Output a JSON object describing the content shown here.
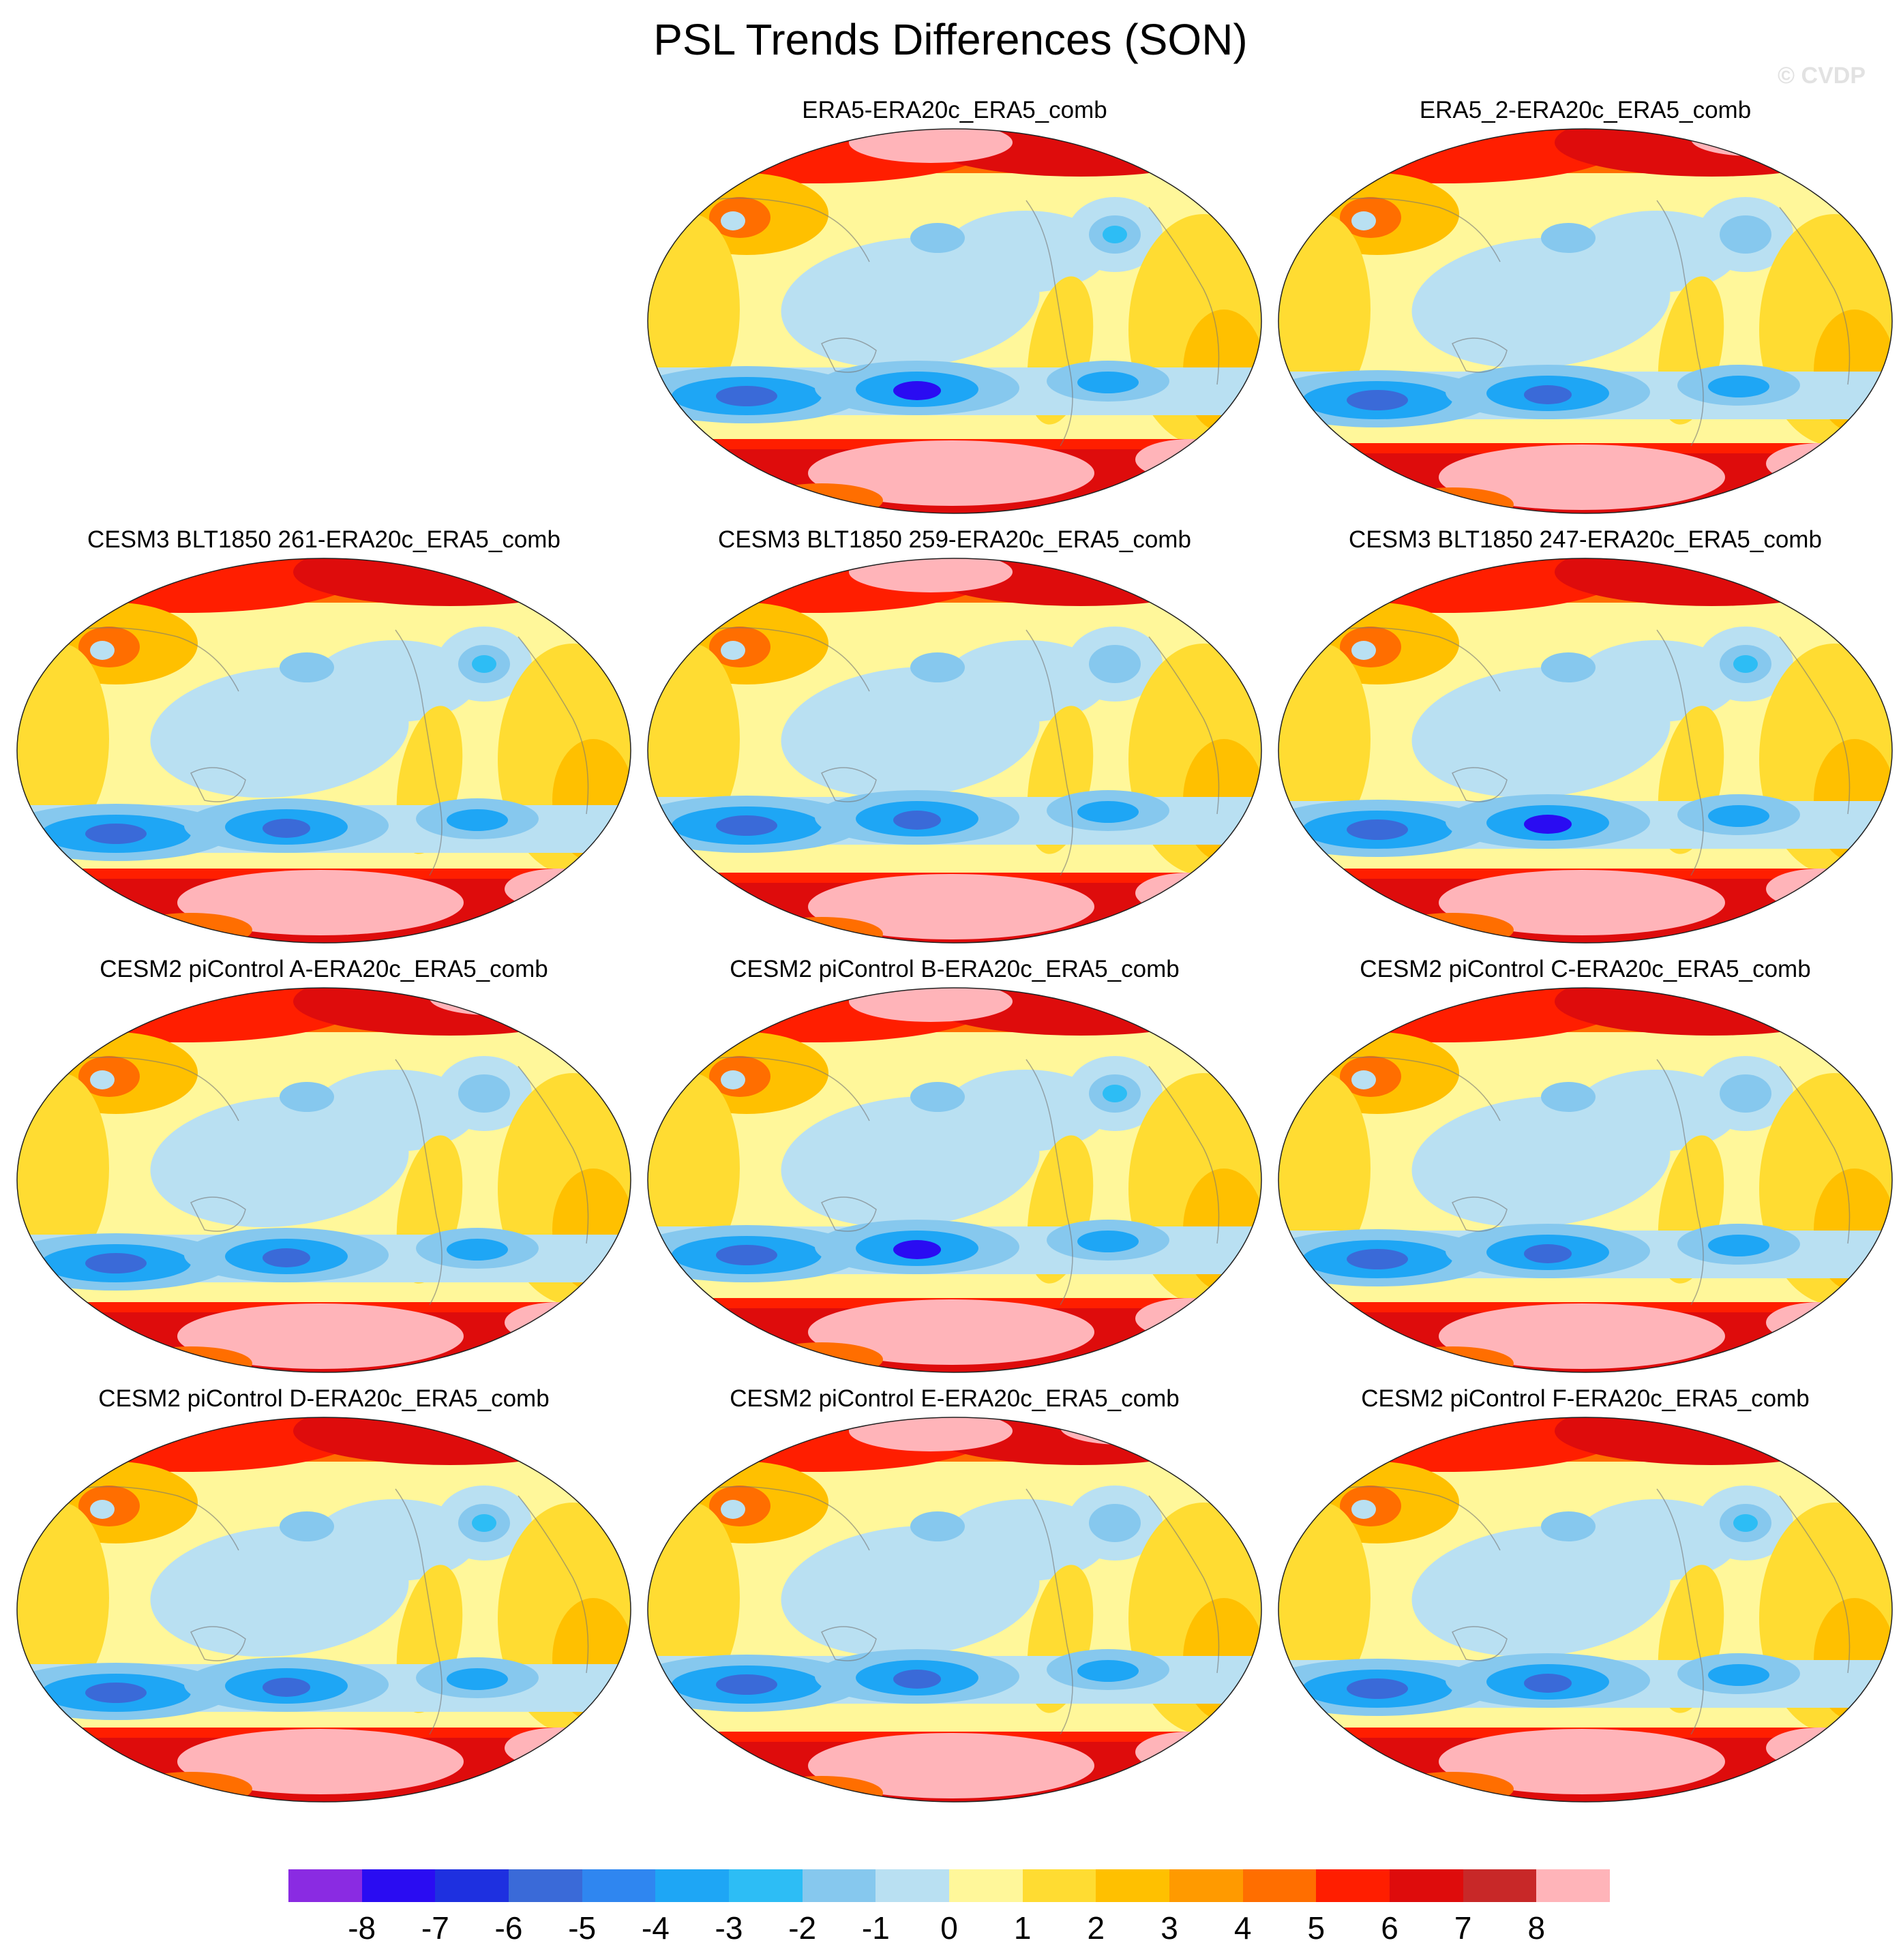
{
  "title": "PSL Trends Differences (SON)",
  "watermark": "© CVDP",
  "panels": [
    {
      "label": "ERA5-ERA20c_ERA5_comb",
      "variant": 0
    },
    {
      "label": "ERA5_2-ERA20c_ERA5_comb",
      "variant": 1
    },
    {
      "label": "CESM3 BLT1850 261-ERA20c_ERA5_comb",
      "variant": 2
    },
    {
      "label": "CESM3 BLT1850 259-ERA20c_ERA5_comb",
      "variant": 3
    },
    {
      "label": "CESM3 BLT1850 247-ERA20c_ERA5_comb",
      "variant": 4
    },
    {
      "label": "CESM2 piControl A-ERA20c_ERA5_comb",
      "variant": 5
    },
    {
      "label": "CESM2 piControl B-ERA20c_ERA5_comb",
      "variant": 6
    },
    {
      "label": "CESM2 piControl C-ERA20c_ERA5_comb",
      "variant": 7
    },
    {
      "label": "CESM2 piControl D-ERA20c_ERA5_comb",
      "variant": 8
    },
    {
      "label": "CESM2 piControl E-ERA20c_ERA5_comb",
      "variant": 9
    },
    {
      "label": "CESM2 piControl F-ERA20c_ERA5_comb",
      "variant": 10
    }
  ],
  "colorbar": {
    "colors": [
      "#8a2be2",
      "#2a0cf2",
      "#1e30e0",
      "#3a6ad8",
      "#2f86f0",
      "#1ea6f5",
      "#2dbdf5",
      "#86c8ee",
      "#b9e0f2",
      "#fff79a",
      "#ffdc32",
      "#ffc000",
      "#ff9a00",
      "#ff6e00",
      "#ff1e00",
      "#de0c0c",
      "#c82828",
      "#ffb4b9"
    ],
    "labels": [
      "-8",
      "-7",
      "-6",
      "-5",
      "-4",
      "-3",
      "-2",
      "-1",
      "0",
      "1",
      "2",
      "3",
      "4",
      "5",
      "6",
      "7",
      "8"
    ]
  }
}
